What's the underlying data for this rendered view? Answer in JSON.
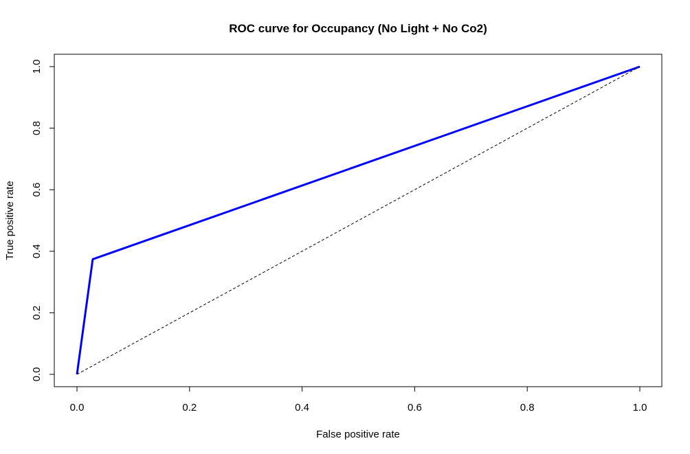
{
  "chart_data": {
    "type": "line",
    "title": "ROC curve for Occupancy (No Light + No Co2)",
    "xlabel": "False positive rate",
    "ylabel": "True positive rate",
    "xlim": [
      0,
      1
    ],
    "ylim": [
      0,
      1
    ],
    "x_ticks": [
      "0.0",
      "0.2",
      "0.4",
      "0.6",
      "0.8",
      "1.0"
    ],
    "y_ticks": [
      "0.0",
      "0.2",
      "0.4",
      "0.6",
      "0.8",
      "1.0"
    ],
    "grid": false,
    "legend": "none",
    "series": [
      {
        "style": "solid",
        "color": "#0000ff",
        "x": [
          0.0,
          0.028,
          1.0
        ],
        "y": [
          0.0,
          0.374,
          1.0
        ]
      },
      {
        "style": "dashed",
        "color": "#000000",
        "x": [
          0.0,
          1.0
        ],
        "y": [
          0.0,
          1.0
        ]
      }
    ]
  }
}
